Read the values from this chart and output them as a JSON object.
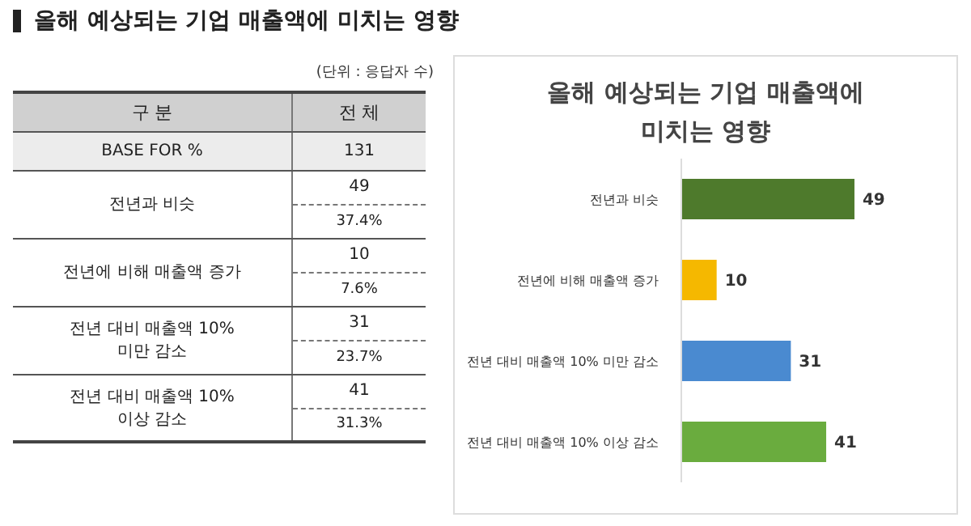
{
  "chart_data": {
    "type": "bar",
    "orientation": "horizontal",
    "title": "올해 예상되는 기업 매출액에 미치는 영향",
    "categories": [
      "전년과 비슷",
      "전년에 비해 매출액 증가",
      "전년 대비 매출액 10% 미만 감소",
      "전년 대비 매출액 10% 이상 감소"
    ],
    "values": [
      49,
      10,
      31,
      41
    ],
    "colors": [
      "#4e7a2c",
      "#f5b800",
      "#4a8ad0",
      "#6aac3e"
    ],
    "value_labels": [
      "49",
      "10",
      "31",
      "41"
    ],
    "annotations": [
      "올해 예상되는 기업 매출액에 미치는 영향",
      "(단위 : 응답자 수)",
      "구 분",
      "전 체",
      "BASE FOR %",
      "131",
      "49",
      "37.4%",
      "10",
      "7.6%",
      "31",
      "23.7%",
      "41",
      "31.3%"
    ],
    "grid": false,
    "legend": false
  }
}
